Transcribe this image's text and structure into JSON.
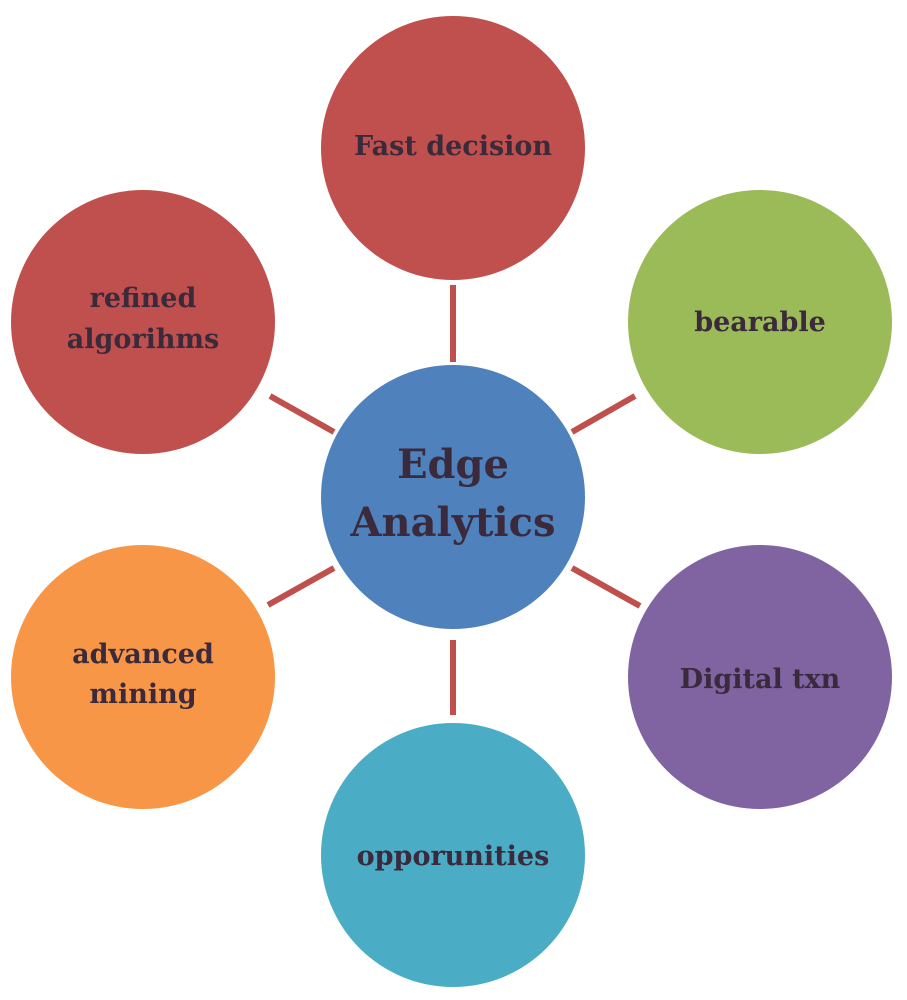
{
  "center": {
    "line1": "Edge",
    "line2": "Analytics",
    "color": "#4f81bd"
  },
  "connector_color": "#c0504d",
  "nodes": [
    {
      "id": "fast-decision",
      "line1": "Fast decision",
      "line2": "",
      "color": "#c0504d"
    },
    {
      "id": "bearable",
      "line1": "bearable",
      "line2": "",
      "color": "#9bbb59"
    },
    {
      "id": "digital-txn",
      "line1": "Digital txn",
      "line2": "",
      "color": "#8064a2"
    },
    {
      "id": "opporunities",
      "line1": "opporunities",
      "line2": "",
      "color": "#4bacc6"
    },
    {
      "id": "advanced-mining",
      "line1": "advanced",
      "line2": "mining",
      "color": "#f79646"
    },
    {
      "id": "refined-algorihms",
      "line1": "refined",
      "line2": "algorihms",
      "color": "#c0504d"
    }
  ]
}
